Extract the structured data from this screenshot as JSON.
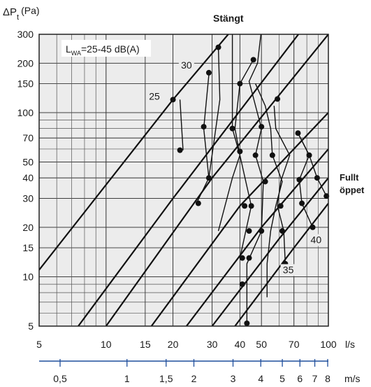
{
  "chart_data": {
    "type": "line",
    "yscale": "log",
    "xscale": "log",
    "y_axis": {
      "label_main": "ΔP",
      "label_sub": "t",
      "label_unit": "(Pa)",
      "range": [
        5,
        300
      ],
      "ticks": [
        5,
        10,
        15,
        20,
        30,
        40,
        50,
        70,
        100,
        150,
        200,
        300
      ],
      "tick_labels": [
        "5",
        "10",
        "15",
        "20",
        "30",
        "40",
        "50",
        "70",
        "100",
        "150",
        "200",
        "300"
      ]
    },
    "x_axis": {
      "label": "l/s",
      "range": [
        5,
        100
      ],
      "ticks": [
        5,
        10,
        15,
        20,
        30,
        40,
        50,
        70,
        100
      ],
      "tick_labels": [
        "5",
        "10",
        "15",
        "20",
        "30",
        "40",
        "50",
        "70",
        "100"
      ]
    },
    "velocity_axis": {
      "label": "m/s",
      "ticks": [
        0.5,
        1,
        1.5,
        2,
        3,
        4,
        5,
        6,
        7,
        8
      ],
      "tick_labels": [
        "0,5",
        "1",
        "1,5",
        "2",
        "3",
        "4",
        "5",
        "6",
        "7",
        "8"
      ]
    },
    "top_label": "Stängt",
    "right_label_lines": [
      "Fullt",
      "öppet"
    ],
    "sound_note": {
      "prefix": "L",
      "sub": "WA",
      "text": "=25-45 dB(A)"
    },
    "duct_lines": [
      {
        "name": "",
        "points": [
          [
            5,
            11
          ],
          [
            20,
            120
          ],
          [
            50,
            520
          ]
        ]
      },
      {
        "name": "",
        "points": [
          [
            7.5,
            5
          ],
          [
            20,
            30
          ],
          [
            100,
            520
          ]
        ]
      },
      {
        "name": "",
        "points": [
          [
            10,
            5
          ],
          [
            30,
            40
          ],
          [
            100,
            300
          ]
        ]
      },
      {
        "name": "",
        "points": [
          [
            16,
            5
          ],
          [
            40,
            27
          ],
          [
            100,
            100
          ]
        ]
      },
      {
        "name": "",
        "points": [
          [
            23,
            5
          ],
          [
            50,
            20
          ],
          [
            100,
            60
          ]
        ]
      },
      {
        "name": "",
        "points": [
          [
            30,
            5
          ],
          [
            60,
            17
          ],
          [
            100,
            40
          ]
        ]
      },
      {
        "name": "",
        "points": [
          [
            38,
            5
          ],
          [
            70,
            15
          ],
          [
            100,
            28
          ]
        ]
      }
    ],
    "sound_curves": [
      {
        "name": "25",
        "points": [
          [
            21.5,
            120
          ],
          [
            22.2,
            59
          ]
        ]
      },
      {
        "name": "30",
        "points": [
          [
            29,
            170
          ],
          [
            27.5,
            80
          ],
          [
            29,
            40
          ],
          [
            25.5,
            28
          ]
        ]
      },
      {
        "name": "",
        "points": [
          [
            32,
            250
          ],
          [
            32.5,
            120
          ],
          [
            29,
            40
          ]
        ]
      },
      {
        "name": "",
        "points": [
          [
            37,
            310
          ],
          [
            37,
            80
          ],
          [
            40,
            55
          ],
          [
            37,
            40
          ],
          [
            32,
            19
          ]
        ]
      },
      {
        "name": "",
        "points": [
          [
            46,
            210
          ],
          [
            40,
            150
          ],
          [
            38,
            80
          ],
          [
            40,
            55
          ],
          [
            45,
            27
          ],
          [
            40,
            13
          ]
        ]
      },
      {
        "name": "",
        "points": [
          [
            50,
            320
          ],
          [
            48,
            200
          ],
          [
            44,
            155
          ],
          [
            50,
            80
          ],
          [
            47,
            55
          ],
          [
            51,
            38
          ],
          [
            50,
            19
          ],
          [
            43,
            12
          ],
          [
            43,
            9
          ],
          [
            43,
            5.2
          ]
        ]
      },
      {
        "name": "",
        "points": [
          [
            47,
            150
          ],
          [
            52,
            110
          ],
          [
            55,
            80
          ],
          [
            56,
            55
          ],
          [
            62,
            38
          ],
          [
            58,
            27
          ],
          [
            55,
            19
          ],
          [
            53,
            12
          ],
          [
            53,
            7.5
          ]
        ]
      },
      {
        "name": "35",
        "points": [
          [
            57,
            110
          ],
          [
            58,
            80
          ],
          [
            67,
            55
          ],
          [
            61,
            38
          ],
          [
            59,
            27
          ],
          [
            63,
            19
          ],
          [
            64,
            12
          ]
        ]
      },
      {
        "name": "40",
        "points": [
          [
            73,
            75
          ],
          [
            82,
            55
          ],
          [
            74,
            39
          ],
          [
            76,
            28
          ],
          [
            85,
            20
          ]
        ]
      },
      {
        "name": "",
        "points": [
          [
            73,
            75
          ],
          [
            82,
            55
          ],
          [
            89,
            40
          ],
          [
            98,
            31
          ]
        ]
      }
    ],
    "markers": [
      [
        20,
        120
      ],
      [
        21.5,
        59
      ],
      [
        29,
        175
      ],
      [
        27.5,
        82
      ],
      [
        32,
        250
      ],
      [
        29,
        40
      ],
      [
        26,
        28
      ],
      [
        37,
        80
      ],
      [
        40,
        58
      ],
      [
        40,
        150
      ],
      [
        46,
        210
      ],
      [
        50,
        82
      ],
      [
        47,
        55
      ],
      [
        52,
        38
      ],
      [
        42,
        27
      ],
      [
        44,
        19
      ],
      [
        41,
        13
      ],
      [
        41,
        9
      ],
      [
        43,
        5.2
      ],
      [
        44,
        13
      ],
      [
        50,
        19
      ],
      [
        45,
        27
      ],
      [
        56,
        55
      ],
      [
        61,
        27
      ],
      [
        62,
        19
      ],
      [
        64,
        12
      ],
      [
        73,
        75
      ],
      [
        82,
        55
      ],
      [
        74,
        39
      ],
      [
        76,
        28
      ],
      [
        85,
        20
      ],
      [
        89,
        40
      ],
      [
        98,
        31
      ],
      [
        59,
        121
      ]
    ],
    "curve_labels": [
      {
        "text": "25",
        "x": 16.5,
        "y": 120
      },
      {
        "text": "30",
        "x": 23,
        "y": 185
      },
      {
        "text": "35",
        "x": 66,
        "y": 10.5
      },
      {
        "text": "40",
        "x": 88,
        "y": 16
      }
    ]
  }
}
